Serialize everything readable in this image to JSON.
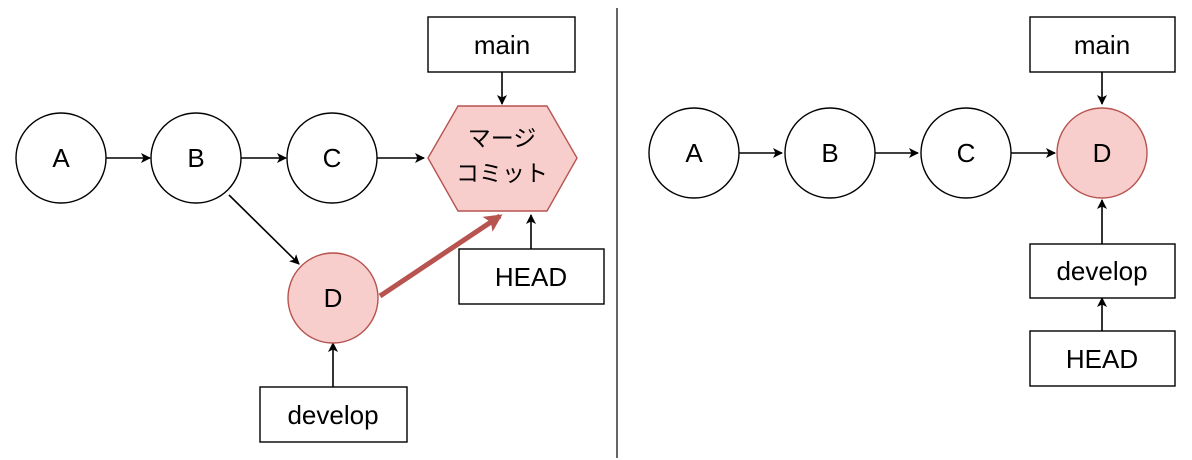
{
  "left": {
    "commits": {
      "a": "A",
      "b": "B",
      "c": "C",
      "d": "D"
    },
    "merge_commit": {
      "line1": "マージ",
      "line2": "コミット"
    },
    "refs": {
      "main": "main",
      "head": "HEAD",
      "develop": "develop"
    }
  },
  "right": {
    "commits": {
      "a": "A",
      "b": "B",
      "c": "C",
      "d": "D"
    },
    "refs": {
      "main": "main",
      "develop": "develop",
      "head": "HEAD"
    }
  },
  "colors": {
    "highlight_fill": "#f8cecc",
    "highlight_stroke": "#b85450",
    "merge_arrow": "#b85450",
    "stroke": "#000000",
    "divider": "#000000"
  }
}
